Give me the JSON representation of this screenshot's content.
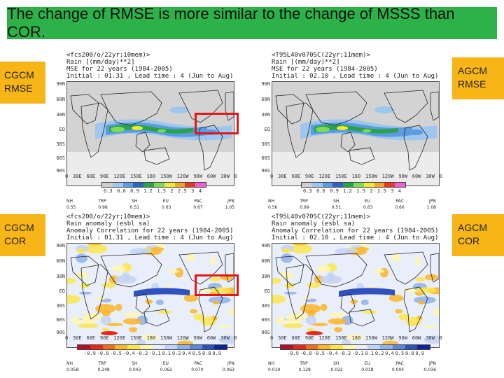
{
  "slide": {
    "title": "The change of RMSE is more similar to the change of MSSS than COR."
  },
  "labels": {
    "tl_line1": "CGCM",
    "tl_line2": "RMSE",
    "tr_line1": "AGCM",
    "tr_line2": "RMSE",
    "bl_line1": "CGCM",
    "bl_line2": "COR",
    "br_line1": "AGCM",
    "br_line2": "COR"
  },
  "panels": {
    "tl": {
      "header": "<fcs200/o/22yr;10mem)>\nRain [(mm/day)**2]\nMSE for 22 years (1984-2005)\nInitial : 01.31 , Lead time : 4 (Jun to Aug)",
      "stats_labels": [
        "NH",
        "TRP",
        "SH",
        "EU",
        "PAC",
        "JPN"
      ],
      "stats_values": [
        "0.55",
        "0.98",
        "0.51",
        "0.63",
        "0.67",
        "1.05"
      ]
    },
    "tr": {
      "header": "<T95L40v070SC(22yr;11mem)>\nRain [(mm/day)**2]\nMSE for 22 years (1984-2005)\nInitial : 02.10 , Lead time : 4 (Jun to Aug)",
      "stats_labels": [
        "NH",
        "TRP",
        "SH",
        "EU",
        "PAC",
        "JPN"
      ],
      "stats_values": [
        "0.56",
        "0.99",
        "0.51",
        "0.63",
        "0.66",
        "1.08"
      ]
    },
    "bl": {
      "header": "<fcs200/o/22yr;10mem)>\nRain anomaly (esbl sa)\nAnomaly Correlation for 22 years (1984-2005)\nInitial : 01.31 , Lead time : 4 (Jun to Aug)",
      "stats_labels": [
        "NH",
        "TRP",
        "SH",
        "EU",
        "PAC",
        "JPN"
      ],
      "stats_values": [
        "0.058",
        "0.248",
        "0.043",
        "0.062",
        "0.070",
        "0.063"
      ]
    },
    "br": {
      "header": "<T95L40v070SC(22yr;11mem)>\nRain anomaly (esbl sa)\nAnomaly Correlation for 22 years (1984-2005)\nInitial : 02.10 , Lead time : 4 (Jun to Aug)",
      "stats_labels": [
        "NH",
        "TRP",
        "SH",
        "EU",
        "PAC",
        "JPN"
      ],
      "stats_values": [
        "0.019",
        "0.128",
        "-0.022",
        "0.018",
        "0.004",
        "-0.036"
      ]
    }
  },
  "axes": {
    "lat_ticks": [
      "90N",
      "60N",
      "30N",
      "EQ",
      "30S",
      "60S",
      "90S"
    ],
    "lon_ticks": [
      "0",
      "30E",
      "60E",
      "90E",
      "120E",
      "150E",
      "180",
      "150W",
      "120W",
      "90W",
      "60W",
      "30W",
      "0"
    ]
  },
  "rmse_colorbar": {
    "colors": [
      "#d0d0d0",
      "#9ec6ef",
      "#5b9be0",
      "#2e63c4",
      "#28a34a",
      "#7ed957",
      "#f2ea2e",
      "#f3a526",
      "#e63a27",
      "#ef5fd3"
    ],
    "ticks": [
      "0.3",
      "0.6",
      "0.9",
      "1.2",
      "1.5",
      "2",
      "2.5",
      "3",
      "4"
    ]
  },
  "cor_colorbar": {
    "colors": [
      "#b0102a",
      "#e02a1c",
      "#f56a16",
      "#fbb526",
      "#fbe64a",
      "#fff6b0",
      "#e9eefa",
      "#c3d2f2",
      "#8fb0ea",
      "#5c84d8",
      "#2e51bf",
      "#10249a"
    ],
    "ticks": [
      "-0.9",
      "-0.8",
      "-0.5",
      "-0.4",
      "-0.2",
      "-0.1",
      "0.1",
      "0.2",
      "0.4",
      "0.5",
      "0.8",
      "0.9"
    ]
  },
  "colors": {
    "title_bg": "#2db24a",
    "side_bg": "#f7b518",
    "highlight": "#e01818"
  }
}
